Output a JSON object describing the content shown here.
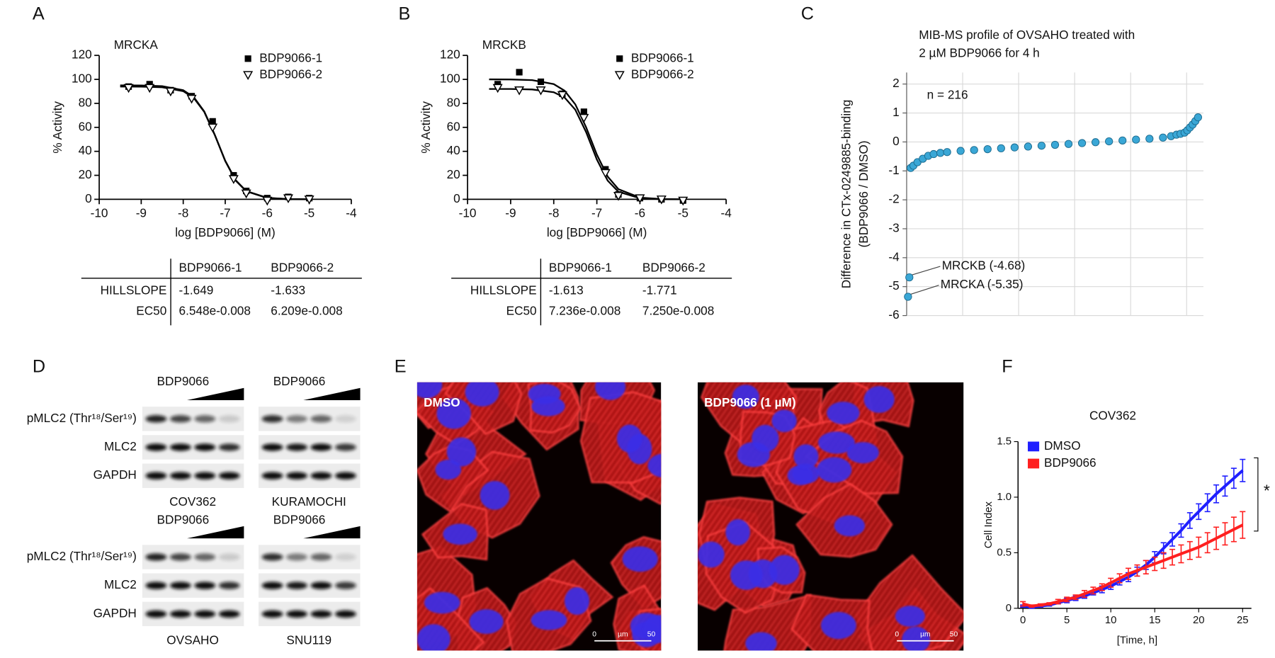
{
  "panel_labels": [
    "A",
    "B",
    "C",
    "D",
    "E",
    "F"
  ],
  "chart_data": [
    {
      "type": "dose_response",
      "title": "MRCKA",
      "x_label": "log [BDP9066] (M)",
      "y_label": "% Activity",
      "xlim": [
        -10,
        -4
      ],
      "xticks": [
        -10,
        -9,
        -8,
        -7,
        -6,
        -5,
        -4
      ],
      "ylim": [
        0,
        120
      ],
      "yticks": [
        0,
        20,
        40,
        60,
        80,
        100,
        120
      ],
      "series": [
        {
          "name": "BDP9066-1",
          "marker": "square",
          "color": "#000000",
          "x": [
            -9.3,
            -8.8,
            -8.3,
            -7.8,
            -7.3,
            -6.8,
            -6.5,
            -6,
            -5.5,
            -5
          ],
          "values": [
            94,
            96,
            91,
            86,
            65,
            20,
            7,
            1,
            2,
            1
          ],
          "fit": {
            "x": [
              -9.5,
              -9,
              -8.5,
              -8,
              -7.75,
              -7.5,
              -7.25,
              -7,
              -6.75,
              -6.5,
              -6,
              -5.5,
              -5
            ],
            "values": [
              95,
              94.9,
              94.4,
              91,
              85.2,
              73.3,
              53.8,
              31.9,
              15.5,
              6.7,
              1.1,
              0.2,
              0
            ]
          }
        },
        {
          "name": "BDP9066-2",
          "marker": "triangle",
          "color": "#000000",
          "x": [
            -9.3,
            -8.8,
            -8.3,
            -7.8,
            -7.3,
            -6.8,
            -6.5,
            -6,
            -5.5,
            -5
          ],
          "values": [
            93,
            93,
            90,
            84,
            60,
            17,
            5,
            -1,
            1,
            0
          ],
          "fit": {
            "x": [
              -9.5,
              -9,
              -8.5,
              -8,
              -7.75,
              -7.5,
              -7.25,
              -7,
              -6.75,
              -6.5,
              -6,
              -5.5,
              -5
            ],
            "values": [
              94,
              93.9,
              93.4,
              90.2,
              84.5,
              72.9,
              53.7,
              32.2,
              15.9,
              6.9,
              1.2,
              0.2,
              0
            ]
          }
        }
      ],
      "table": {
        "header": [
          "BDP9066-1",
          "BDP9066-2"
        ],
        "rows": [
          {
            "label": "HILLSLOPE",
            "values": [
              "-1.649",
              "-1.633"
            ]
          },
          {
            "label": "EC50",
            "values": [
              "6.548e-0.008",
              "6.209e-0.008"
            ]
          }
        ]
      }
    },
    {
      "type": "dose_response",
      "title": "MRCKB",
      "x_label": "log [BDP9066] (M)",
      "y_label": "% Activity",
      "xlim": [
        -10,
        -4
      ],
      "xticks": [
        -10,
        -9,
        -8,
        -7,
        -6,
        -5,
        -4
      ],
      "ylim": [
        0,
        120
      ],
      "yticks": [
        0,
        20,
        40,
        60,
        80,
        100,
        120
      ],
      "series": [
        {
          "name": "BDP9066-1",
          "marker": "square",
          "color": "#000000",
          "x": [
            -9.3,
            -8.8,
            -8.3,
            -7.8,
            -7.3,
            -6.8,
            -6.5,
            -6,
            -5.5,
            -5
          ],
          "values": [
            96,
            106,
            98,
            88,
            73,
            25,
            4,
            1,
            0,
            -1
          ],
          "fit": {
            "x": [
              -9.5,
              -9,
              -8.5,
              -8,
              -7.75,
              -7.5,
              -7.25,
              -7,
              -6.75,
              -6.5,
              -6,
              -5.5,
              -5
            ],
            "values": [
              100,
              99.9,
              99.4,
              96.1,
              90.6,
              79.2,
              60.1,
              37.3,
              19,
              8.5,
              1.4,
              0.2,
              0
            ]
          }
        },
        {
          "name": "BDP9066-2",
          "marker": "triangle",
          "color": "#000000",
          "x": [
            -9.3,
            -8.8,
            -8.3,
            -7.8,
            -7.3,
            -6.8,
            -6.5,
            -6,
            -5.5,
            -5
          ],
          "values": [
            93,
            91,
            91,
            87,
            68,
            22,
            3,
            1,
            0,
            -1
          ],
          "fit": {
            "x": [
              -9.5,
              -9,
              -8.5,
              -8,
              -7.75,
              -7.5,
              -7.25,
              -7,
              -6.75,
              -6.5,
              -6,
              -5.5,
              -5
            ],
            "values": [
              92,
              92,
              91.6,
              89.3,
              84.9,
              74.7,
              56.1,
              33.2,
              15.6,
              6.3,
              0.9,
              0.1,
              0
            ]
          }
        }
      ],
      "table": {
        "header": [
          "BDP9066-1",
          "BDP9066-2"
        ],
        "rows": [
          {
            "label": "HILLSLOPE",
            "values": [
              "-1.613",
              "-1.771"
            ]
          },
          {
            "label": "EC50",
            "values": [
              "7.236e-0.008",
              "7.250e-0.008"
            ]
          }
        ]
      }
    },
    {
      "type": "scatter",
      "title": [
        "MIB-MS profile of OVSAHO treated with",
        "2 µM BDP9066 for 4 h"
      ],
      "y_label": [
        "Difference in CTx-0249885-binding",
        "(BDP9066 / DMSO)"
      ],
      "xlim": [
        0,
        220
      ],
      "ylim": [
        -6,
        2.4
      ],
      "yticks": [
        -6,
        -5,
        -4,
        -3,
        -2,
        -1,
        0,
        1,
        2
      ],
      "grid": true,
      "color": "#3aa7d6",
      "annotations": [
        "n = 216",
        "MRCKB (-4.68)",
        "MRCKA (-5.35)"
      ],
      "x": [
        1,
        2,
        3,
        5,
        8,
        12,
        16,
        20,
        25,
        30,
        40,
        50,
        60,
        70,
        80,
        90,
        100,
        110,
        120,
        130,
        140,
        150,
        160,
        170,
        180,
        190,
        196,
        200,
        203,
        206,
        208,
        210,
        212,
        214,
        216
      ],
      "values": [
        -5.35,
        -4.68,
        -0.9,
        -0.82,
        -0.7,
        -0.58,
        -0.48,
        -0.42,
        -0.38,
        -0.35,
        -0.31,
        -0.28,
        -0.25,
        -0.22,
        -0.19,
        -0.16,
        -0.13,
        -0.1,
        -0.07,
        -0.04,
        -0.01,
        0.02,
        0.05,
        0.08,
        0.11,
        0.15,
        0.2,
        0.25,
        0.28,
        0.32,
        0.4,
        0.5,
        0.6,
        0.72,
        0.85
      ]
    },
    {
      "type": "line",
      "title": "COV362",
      "x_label": "[Time, h]",
      "y_label": "Cell Index",
      "annotations": [
        "*"
      ],
      "xlim": [
        0,
        26
      ],
      "xticks": [
        0,
        5,
        10,
        15,
        20,
        25
      ],
      "ylim": [
        0,
        1.5
      ],
      "yticks": [
        0,
        0.5,
        {
          "value": 1,
          "label": "1.0"
        },
        1.5
      ],
      "x": [
        0,
        1,
        2,
        3,
        4,
        5,
        6,
        7,
        8,
        9,
        10,
        11,
        12,
        13,
        14,
        15,
        16,
        17,
        18,
        19,
        20,
        21,
        22,
        23,
        24,
        25
      ],
      "series": [
        {
          "name": "DMSO",
          "color": "#1f1fff",
          "values": [
            0.02,
            0.01,
            0.02,
            0.03,
            0.05,
            0.07,
            0.09,
            0.11,
            0.14,
            0.17,
            0.2,
            0.24,
            0.28,
            0.33,
            0.39,
            0.46,
            0.54,
            0.62,
            0.7,
            0.79,
            0.87,
            0.95,
            1.03,
            1.1,
            1.17,
            1.24
          ],
          "errors": [
            0.01,
            0.01,
            0.01,
            0.01,
            0.01,
            0.02,
            0.02,
            0.02,
            0.02,
            0.03,
            0.03,
            0.03,
            0.04,
            0.04,
            0.04,
            0.05,
            0.05,
            0.06,
            0.06,
            0.07,
            0.07,
            0.08,
            0.08,
            0.09,
            0.09,
            0.1
          ]
        },
        {
          "name": "BDP9066",
          "color": "#ff1f1f",
          "values": [
            0.04,
            0.02,
            0.03,
            0.04,
            0.06,
            0.08,
            0.1,
            0.13,
            0.16,
            0.19,
            0.23,
            0.27,
            0.31,
            0.34,
            0.37,
            0.4,
            0.43,
            0.46,
            0.49,
            0.52,
            0.55,
            0.59,
            0.63,
            0.67,
            0.71,
            0.75
          ],
          "errors": [
            0.02,
            0.01,
            0.01,
            0.01,
            0.02,
            0.02,
            0.02,
            0.03,
            0.03,
            0.03,
            0.04,
            0.04,
            0.05,
            0.05,
            0.06,
            0.06,
            0.07,
            0.07,
            0.08,
            0.08,
            0.09,
            0.09,
            0.1,
            0.1,
            0.11,
            0.12
          ]
        }
      ]
    }
  ],
  "blot_row_labels": [
    "pMLC2 (Thr¹⁸/Ser¹⁹)",
    "MLC2",
    "GAPDH"
  ],
  "blots": [
    {
      "treatment": "BDP9066",
      "cell_line": "COV362"
    },
    {
      "treatment": "BDP9066",
      "cell_line": "KURAMOCHI"
    },
    {
      "treatment": "BDP9066",
      "cell_line": "OVSAHO"
    },
    {
      "treatment": "BDP9066",
      "cell_line": "SNU119"
    }
  ],
  "micrographs": [
    {
      "label": "DMSO",
      "scale": [
        "0",
        "µm",
        "50"
      ]
    },
    {
      "label": "BDP9066 (1 µM)",
      "scale": [
        "0",
        "µm",
        "50"
      ]
    }
  ]
}
